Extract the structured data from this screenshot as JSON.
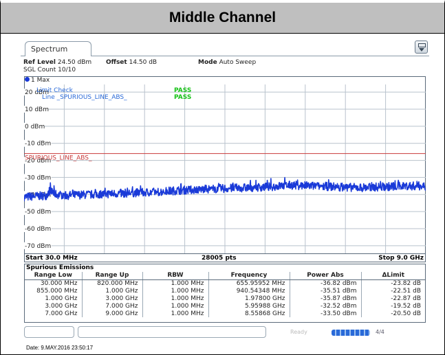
{
  "header": {
    "title": "Middle Channel"
  },
  "tab": {
    "label": "Spectrum"
  },
  "settings": {
    "ref_level_label": "Ref Level",
    "ref_level_value": "24.50 dBm",
    "offset_label": "Offset",
    "offset_value": "14.50 dB",
    "mode_label": "Mode",
    "mode_value": "Auto Sweep",
    "sgl_count": "SGL Count 10/10"
  },
  "trace": {
    "label": "1 Max",
    "color": "#1a3ad8"
  },
  "limit_check": {
    "title": "Limit Check",
    "title_status": "PASS",
    "line_label": "Line _SPURIOUS_LINE_ABS_",
    "line_status": "PASS",
    "limit_line_name": "SPURIOUS_LINE_ABS_",
    "limit_line_level_dbm": -16,
    "pass_color": "#17c217",
    "limit_color": "#c83a3a"
  },
  "chart_data": {
    "type": "line",
    "y_ticks": [
      "20 dBm",
      "10 dBm",
      "0 dBm",
      "-10 dBm",
      "-20 dBm",
      "-30 dBm",
      "-40 dBm",
      "-50 dBm",
      "-60 dBm",
      "-70 dBm"
    ],
    "y_tick_values": [
      20,
      10,
      0,
      -10,
      -20,
      -30,
      -40,
      -50,
      -60,
      -70
    ],
    "ylim": [
      -74.5,
      24.5
    ],
    "xlim_ghz": [
      0.03,
      9.0
    ],
    "grid": true,
    "series": [
      {
        "x_ghz": [
          0.03,
          0.3,
          0.55,
          0.6,
          0.75,
          1.0,
          1.5,
          2.0,
          2.5,
          3.0,
          3.5,
          4.0,
          4.5,
          5.0,
          5.5,
          6.0,
          6.5,
          7.0,
          7.5,
          8.0,
          8.5,
          9.0
        ],
        "y_dbm": [
          -41.5,
          -41.0,
          -40.5,
          -37.5,
          -40.0,
          -40.5,
          -40.0,
          -39.5,
          -39.0,
          -38.5,
          -37.5,
          -37.0,
          -36.5,
          -36.0,
          -35.5,
          -34.5,
          -35.0,
          -35.5,
          -36.0,
          -35.5,
          -35.0,
          -35.0
        ]
      }
    ]
  },
  "axis": {
    "start": "Start 30.0 MHz",
    "points": "28005 pts",
    "stop": "Stop 9.0 GHz"
  },
  "spurious": {
    "title": "Spurious Emissions",
    "columns": [
      "Range Low",
      "Range Up",
      "RBW",
      "Frequency",
      "Power Abs",
      "ΔLimit"
    ],
    "rows": [
      [
        "30.000 MHz",
        "820.000 MHz",
        "1.000 MHz",
        "655.95952 MHz",
        "-36.82 dBm",
        "-23.82 dB"
      ],
      [
        "855.000 MHz",
        "1.000 GHz",
        "1.000 MHz",
        "940.54348 MHz",
        "-35.51 dBm",
        "-22.51 dB"
      ],
      [
        "1.000 GHz",
        "3.000 GHz",
        "1.000 MHz",
        "1.97800 GHz",
        "-35.87 dBm",
        "-22.87 dB"
      ],
      [
        "3.000 GHz",
        "7.000 GHz",
        "1.000 MHz",
        "5.95988 GHz",
        "-32.52 dBm",
        "-19.52 dB"
      ],
      [
        "7.000 GHz",
        "9.000 GHz",
        "1.000 MHz",
        "8.55868 GHz",
        "-33.50 dBm",
        "-20.50 dB"
      ]
    ]
  },
  "status": {
    "label": "Ready",
    "extra": "4/4"
  },
  "footer": {
    "date": "Date: 9.MAY.2016  23:50:17"
  }
}
